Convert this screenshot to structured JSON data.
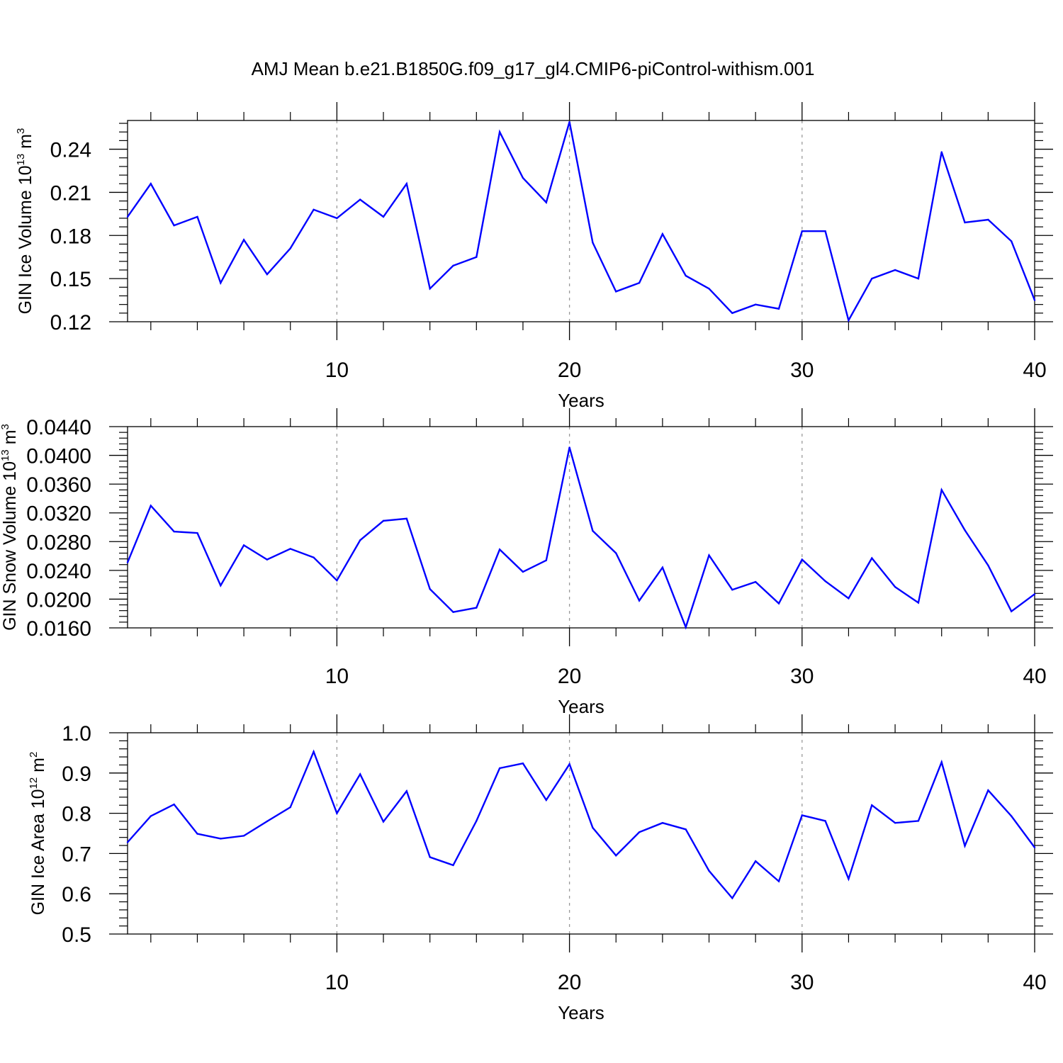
{
  "title": "AMJ Mean b.e21.B1850G.f09_g17_gl4.CMIP6-piControl-withism.001",
  "colors": {
    "line": "#0000ff",
    "axis": "#000000",
    "grid": "#999999"
  },
  "chart_data": [
    {
      "type": "line",
      "xlabel": "Years",
      "ylabel": {
        "text": "GIN Ice Volume 10",
        "sup": "13",
        "unit": " m",
        "unit_sup": "3"
      },
      "xlim": [
        1,
        40
      ],
      "ylim": [
        0.12,
        0.26
      ],
      "xticks": [
        10,
        20,
        30,
        40
      ],
      "yticks": [
        0.12,
        0.15,
        0.18,
        0.21,
        0.24
      ],
      "ytick_labels": [
        "0.12",
        "0.15",
        "0.18",
        "0.21",
        "0.24"
      ],
      "grid": "dashed vertical at major x ticks",
      "series": [
        {
          "x": [
            1,
            2,
            3,
            4,
            5,
            6,
            7,
            8,
            9,
            10,
            11,
            12,
            13,
            14,
            15,
            16,
            17,
            18,
            19,
            20,
            21,
            22,
            23,
            24,
            25,
            26,
            27,
            28,
            29,
            30,
            31,
            32,
            33,
            34,
            35,
            36,
            37,
            38,
            39,
            40
          ],
          "values": [
            0.193,
            0.216,
            0.187,
            0.193,
            0.147,
            0.177,
            0.153,
            0.171,
            0.198,
            0.192,
            0.205,
            0.193,
            0.216,
            0.143,
            0.159,
            0.165,
            0.252,
            0.22,
            0.203,
            0.259,
            0.175,
            0.141,
            0.147,
            0.181,
            0.152,
            0.143,
            0.126,
            0.132,
            0.129,
            0.183,
            0.183,
            0.121,
            0.15,
            0.156,
            0.15,
            0.238,
            0.189,
            0.191,
            0.176,
            0.135
          ]
        }
      ]
    },
    {
      "type": "line",
      "xlabel": "Years",
      "ylabel": {
        "text": "GIN Snow Volume 10",
        "sup": "13",
        "unit": " m",
        "unit_sup": "3"
      },
      "xlim": [
        1,
        40
      ],
      "ylim": [
        0.016,
        0.044
      ],
      "xticks": [
        10,
        20,
        30,
        40
      ],
      "yticks": [
        0.016,
        0.02,
        0.024,
        0.028,
        0.032,
        0.036,
        0.04,
        0.044
      ],
      "ytick_labels": [
        "0.0160",
        "0.0200",
        "0.0240",
        "0.0280",
        "0.0320",
        "0.0360",
        "0.0400",
        "0.0440"
      ],
      "grid": "dashed vertical at major x ticks",
      "series": [
        {
          "x": [
            1,
            2,
            3,
            4,
            5,
            6,
            7,
            8,
            9,
            10,
            11,
            12,
            13,
            14,
            15,
            16,
            17,
            18,
            19,
            20,
            21,
            22,
            23,
            24,
            25,
            26,
            27,
            28,
            29,
            30,
            31,
            32,
            33,
            34,
            35,
            36,
            37,
            38,
            39,
            40
          ],
          "values": [
            0.0251,
            0.033,
            0.0294,
            0.0292,
            0.0219,
            0.0275,
            0.0255,
            0.027,
            0.0258,
            0.0226,
            0.0282,
            0.0309,
            0.0312,
            0.0214,
            0.0182,
            0.0188,
            0.0269,
            0.0238,
            0.0254,
            0.0411,
            0.0295,
            0.0264,
            0.0198,
            0.0244,
            0.0161,
            0.0261,
            0.0213,
            0.0224,
            0.0194,
            0.0255,
            0.0225,
            0.0201,
            0.0257,
            0.0217,
            0.0195,
            0.0352,
            0.0296,
            0.0247,
            0.0183,
            0.0207
          ]
        }
      ]
    },
    {
      "type": "line",
      "xlabel": "Years",
      "ylabel": {
        "text": "GIN Ice Area 10",
        "sup": "12",
        "unit": " m",
        "unit_sup": "2"
      },
      "xlim": [
        1,
        40
      ],
      "ylim": [
        0.5,
        1.0
      ],
      "xticks": [
        10,
        20,
        30,
        40
      ],
      "yticks": [
        0.5,
        0.6,
        0.7,
        0.8,
        0.9,
        1.0
      ],
      "ytick_labels": [
        "0.5",
        "0.6",
        "0.7",
        "0.8",
        "0.9",
        "1.0"
      ],
      "grid": "dashed vertical at major x ticks",
      "series": [
        {
          "x": [
            1,
            2,
            3,
            4,
            5,
            6,
            7,
            8,
            9,
            10,
            11,
            12,
            13,
            14,
            15,
            16,
            17,
            18,
            19,
            20,
            21,
            22,
            23,
            24,
            25,
            26,
            27,
            28,
            29,
            30,
            31,
            32,
            33,
            34,
            35,
            36,
            37,
            38,
            39,
            40
          ],
          "values": [
            0.728,
            0.793,
            0.822,
            0.749,
            0.737,
            0.744,
            0.78,
            0.815,
            0.953,
            0.8,
            0.897,
            0.779,
            0.855,
            0.691,
            0.671,
            0.781,
            0.912,
            0.924,
            0.833,
            0.922,
            0.764,
            0.695,
            0.753,
            0.776,
            0.76,
            0.657,
            0.589,
            0.681,
            0.631,
            0.795,
            0.781,
            0.637,
            0.82,
            0.776,
            0.781,
            0.927,
            0.719,
            0.857,
            0.793,
            0.715
          ]
        }
      ]
    }
  ]
}
